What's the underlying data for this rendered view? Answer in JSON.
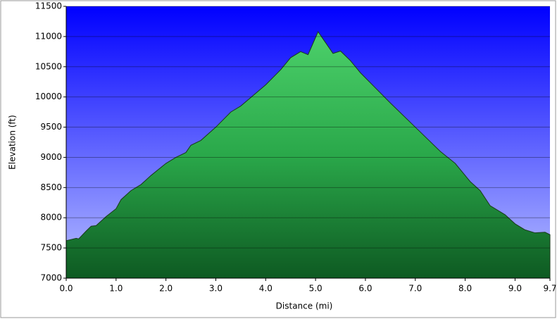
{
  "chart_data": {
    "type": "area",
    "x_label": "Distance    (mi)",
    "y_label": "Elevation (ft)",
    "x": [
      0.0,
      0.2,
      0.25,
      0.4,
      0.5,
      0.6,
      0.8,
      1.0,
      1.1,
      1.3,
      1.5,
      1.7,
      2.0,
      2.2,
      2.4,
      2.5,
      2.7,
      3.0,
      3.3,
      3.5,
      4.0,
      4.3,
      4.5,
      4.7,
      4.85,
      5.05,
      5.2,
      5.35,
      5.5,
      5.7,
      5.9,
      6.2,
      6.5,
      7.0,
      7.5,
      7.8,
      8.1,
      8.3,
      8.5,
      8.8,
      9.0,
      9.2,
      9.4,
      9.6,
      9.7
    ],
    "values": [
      7620,
      7660,
      7650,
      7780,
      7860,
      7870,
      8020,
      8150,
      8300,
      8450,
      8550,
      8700,
      8900,
      9000,
      9080,
      9200,
      9280,
      9500,
      9750,
      9850,
      10200,
      10450,
      10650,
      10750,
      10700,
      11080,
      10900,
      10720,
      10760,
      10600,
      10400,
      10150,
      9900,
      9500,
      9100,
      8900,
      8600,
      8450,
      8200,
      8050,
      7900,
      7800,
      7750,
      7760,
      7720
    ],
    "color": "#2aa84a",
    "xlim": [
      0,
      9.7
    ],
    "xticks": [
      {
        "value": 0,
        "label": "0.0"
      },
      {
        "value": 1,
        "label": "1.0"
      },
      {
        "value": 2,
        "label": "2.0"
      },
      {
        "value": 3,
        "label": "3.0"
      },
      {
        "value": 4,
        "label": "4.0"
      },
      {
        "value": 5,
        "label": "5.0"
      },
      {
        "value": 6,
        "label": "6.0"
      },
      {
        "value": 7,
        "label": "7.0"
      },
      {
        "value": 8,
        "label": "8.0"
      },
      {
        "value": 9,
        "label": "9.0"
      },
      9.7
    ],
    "ylim": [
      7000,
      11500
    ],
    "yticks": [
      7000,
      7500,
      8000,
      8500,
      9000,
      9500,
      10000,
      10500,
      11000,
      11500
    ],
    "grid": true
  }
}
